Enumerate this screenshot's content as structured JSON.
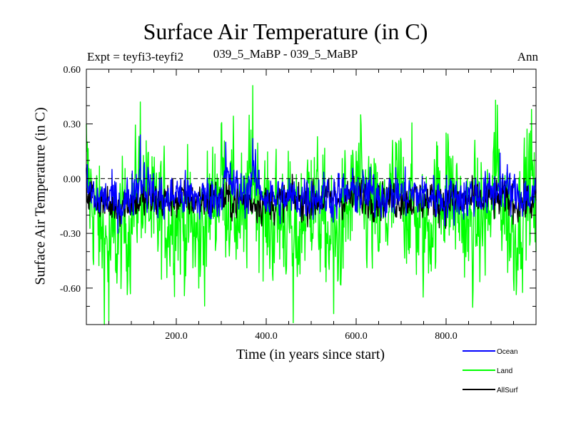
{
  "chart_data": {
    "type": "line",
    "title": "Surface Air Temperature (in C)",
    "subtitle_left": "Expt = teyfi3-teyfi2",
    "subtitle_center": "039_5_MaBP - 039_5_MaBP",
    "subtitle_right": "Ann",
    "xlabel": "Time (in years since start)",
    "ylabel": "Surface Air Temperature (in C)",
    "xlim": [
      0,
      1000
    ],
    "ylim": [
      -0.8,
      0.6
    ],
    "xticks": [
      200,
      400,
      600,
      800
    ],
    "xtick_labels": [
      "200.0",
      "400.0",
      "600.0",
      "800.0"
    ],
    "yticks": [
      0.6,
      0.3,
      0.0,
      -0.3,
      -0.6
    ],
    "ytick_labels": [
      "0.60",
      "0.30",
      "0.00",
      "-0.30",
      "-0.60"
    ],
    "reference_line": 0.0,
    "series": [
      {
        "name": "Ocean",
        "color": "#0000ff",
        "approx_points": [
          [
            0,
            0.05
          ],
          [
            20,
            -0.12
          ],
          [
            50,
            -0.1
          ],
          [
            80,
            -0.2
          ],
          [
            100,
            -0.08
          ],
          [
            120,
            0.24
          ],
          [
            150,
            -0.05
          ],
          [
            180,
            -0.15
          ],
          [
            200,
            -0.04
          ],
          [
            250,
            -0.12
          ],
          [
            300,
            -0.05
          ],
          [
            310,
            0.2
          ],
          [
            350,
            -0.08
          ],
          [
            370,
            0.22
          ],
          [
            400,
            -0.1
          ],
          [
            450,
            -0.12
          ],
          [
            500,
            -0.05
          ],
          [
            550,
            -0.06
          ],
          [
            600,
            -0.02
          ],
          [
            650,
            -0.05
          ],
          [
            700,
            -0.03
          ],
          [
            750,
            -0.06
          ],
          [
            800,
            -0.1
          ],
          [
            850,
            -0.06
          ],
          [
            900,
            -0.04
          ],
          [
            920,
            0.14
          ],
          [
            950,
            -0.05
          ],
          [
            1000,
            -0.08
          ]
        ]
      },
      {
        "name": "Land",
        "color": "#00ff00",
        "approx_points": [
          [
            0,
            0.3
          ],
          [
            30,
            -0.4
          ],
          [
            50,
            -0.78
          ],
          [
            100,
            -0.3
          ],
          [
            120,
            0.42
          ],
          [
            150,
            -0.3
          ],
          [
            200,
            -0.2
          ],
          [
            250,
            -0.6
          ],
          [
            300,
            0.3
          ],
          [
            350,
            -0.4
          ],
          [
            370,
            0.51
          ],
          [
            400,
            -0.35
          ],
          [
            450,
            -0.2
          ],
          [
            460,
            -0.79
          ],
          [
            500,
            0.1
          ],
          [
            550,
            -0.74
          ],
          [
            600,
            0.15
          ],
          [
            650,
            -0.4
          ],
          [
            700,
            0.2
          ],
          [
            750,
            -0.5
          ],
          [
            800,
            0.25
          ],
          [
            850,
            -0.45
          ],
          [
            900,
            -0.2
          ],
          [
            910,
            0.43
          ],
          [
            950,
            -0.55
          ],
          [
            990,
            0.38
          ],
          [
            1000,
            -0.4
          ]
        ]
      },
      {
        "name": "AllSurf",
        "color": "#000000",
        "approx_points": [
          [
            0,
            0.06
          ],
          [
            50,
            -0.18
          ],
          [
            100,
            -0.1
          ],
          [
            150,
            -0.1
          ],
          [
            200,
            -0.07
          ],
          [
            300,
            -0.06
          ],
          [
            400,
            -0.12
          ],
          [
            500,
            -0.08
          ],
          [
            600,
            -0.05
          ],
          [
            700,
            -0.06
          ],
          [
            800,
            -0.1
          ],
          [
            900,
            -0.07
          ],
          [
            1000,
            -0.12
          ]
        ]
      }
    ],
    "legend": [
      {
        "label": "Ocean",
        "color": "#0000ff"
      },
      {
        "label": "Land",
        "color": "#00ff00"
      },
      {
        "label": "AllSurf",
        "color": "#000000"
      }
    ]
  }
}
